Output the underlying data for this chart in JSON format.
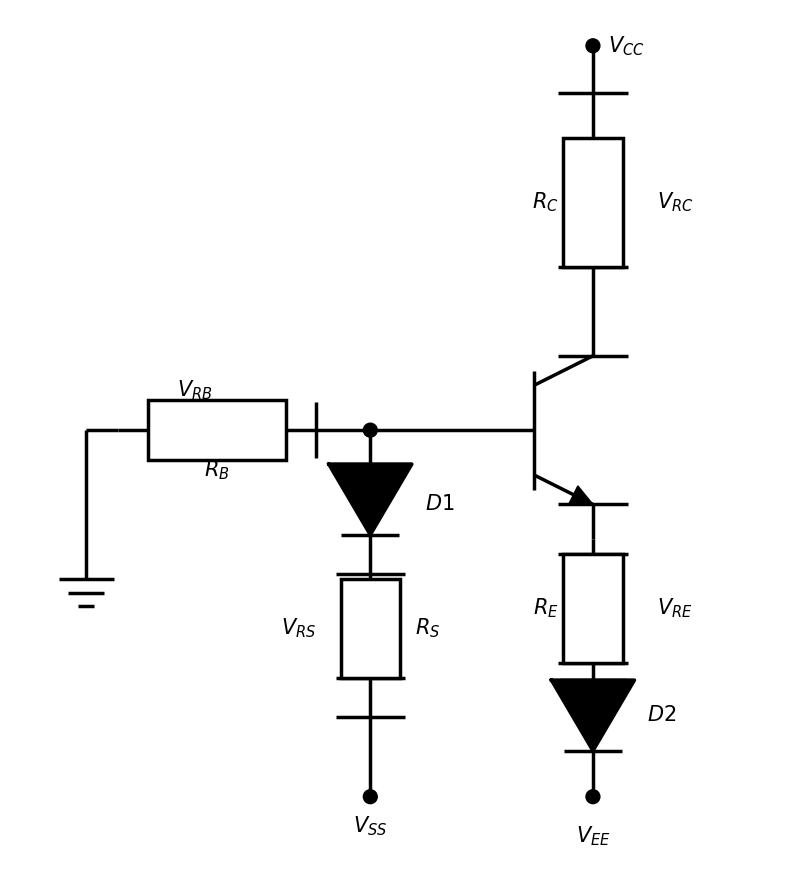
{
  "bg_color": "#ffffff",
  "line_color": "#000000",
  "line_width": 2.5,
  "figsize": [
    7.96,
    8.92
  ],
  "dpi": 100
}
